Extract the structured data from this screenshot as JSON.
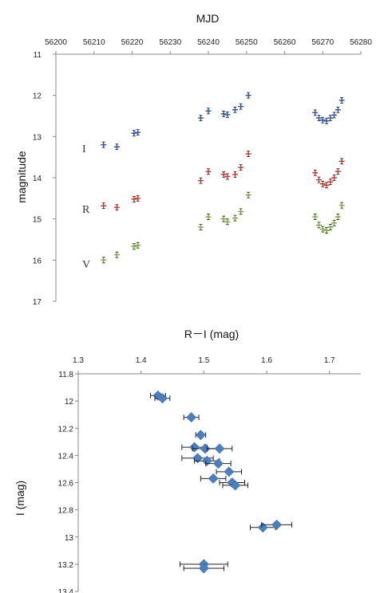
{
  "chart_data": [
    {
      "type": "scatter",
      "xlabel": "MJD",
      "ylabel": "magnitude",
      "xlim": [
        56200,
        56280
      ],
      "ylim": [
        17,
        11
      ],
      "y_inverted": true,
      "x_ticks": [
        "56200",
        "56210",
        "56220",
        "56230",
        "56240",
        "56250",
        "56260",
        "56270",
        "56280"
      ],
      "y_ticks": [
        "11",
        "12",
        "13",
        "14",
        "15",
        "16",
        "17"
      ],
      "x_axis_position": "top",
      "grid": false,
      "band_labels": [
        "I",
        "R",
        "V"
      ],
      "series": [
        {
          "name": "I",
          "color": "#2b52a6",
          "points": [
            [
              56212.5,
              13.2
            ],
            [
              56216,
              13.25
            ],
            [
              56220.5,
              12.92
            ],
            [
              56221.5,
              12.9
            ],
            [
              56238,
              12.55
            ],
            [
              56240,
              12.38
            ],
            [
              56244,
              12.45
            ],
            [
              56245,
              12.47
            ],
            [
              56247,
              12.35
            ],
            [
              56248.5,
              12.27
            ],
            [
              56250.5,
              12.0
            ],
            [
              56268,
              12.42
            ],
            [
              56269,
              12.55
            ],
            [
              56270,
              12.6
            ],
            [
              56271,
              12.62
            ],
            [
              56272,
              12.55
            ],
            [
              56273,
              12.48
            ],
            [
              56274,
              12.35
            ],
            [
              56275,
              12.12
            ]
          ]
        },
        {
          "name": "R",
          "color": "#c0392b",
          "points": [
            [
              56212.5,
              14.68
            ],
            [
              56216,
              14.72
            ],
            [
              56220.5,
              14.52
            ],
            [
              56221.5,
              14.5
            ],
            [
              56238,
              14.07
            ],
            [
              56240,
              13.85
            ],
            [
              56244,
              13.92
            ],
            [
              56245,
              13.97
            ],
            [
              56247,
              13.92
            ],
            [
              56248.5,
              13.75
            ],
            [
              56250.5,
              13.42
            ],
            [
              56268,
              13.88
            ],
            [
              56269,
              14.05
            ],
            [
              56270,
              14.15
            ],
            [
              56271,
              14.18
            ],
            [
              56272,
              14.1
            ],
            [
              56273,
              14.0
            ],
            [
              56274,
              13.85
            ],
            [
              56275,
              13.6
            ]
          ]
        },
        {
          "name": "V",
          "color": "#7aa63a",
          "points": [
            [
              56212.5,
              16.0
            ],
            [
              56216,
              15.87
            ],
            [
              56220.5,
              15.67
            ],
            [
              56221.5,
              15.64
            ],
            [
              56238,
              15.2
            ],
            [
              56240,
              14.95
            ],
            [
              56244,
              15.0
            ],
            [
              56245,
              15.07
            ],
            [
              56247,
              14.98
            ],
            [
              56248.5,
              14.82
            ],
            [
              56250.5,
              14.42
            ],
            [
              56268,
              14.95
            ],
            [
              56269,
              15.15
            ],
            [
              56270,
              15.25
            ],
            [
              56271,
              15.28
            ],
            [
              56272,
              15.2
            ],
            [
              56273,
              15.1
            ],
            [
              56274,
              14.95
            ],
            [
              56275,
              14.67
            ]
          ]
        }
      ]
    },
    {
      "type": "scatter",
      "xlabel": "R－I (mag)",
      "ylabel": "I (mag)",
      "xlim": [
        1.3,
        1.75
      ],
      "ylim": [
        13.4,
        11.8
      ],
      "y_inverted": true,
      "x_ticks": [
        "1.3",
        "1.4",
        "1.5",
        "1.6",
        "1.7"
      ],
      "y_ticks": [
        "11.8",
        "12",
        "12.2",
        "12.4",
        "12.6",
        "12.8",
        "13",
        "13.2",
        "13.4"
      ],
      "x_axis_position": "top",
      "grid": false,
      "color": "#4a7fc1",
      "points": [
        {
          "x": 1.427,
          "y": 11.96,
          "xerr": 0.012
        },
        {
          "x": 1.434,
          "y": 11.98,
          "xerr": 0.012
        },
        {
          "x": 1.48,
          "y": 12.12,
          "xerr": 0.012
        },
        {
          "x": 1.495,
          "y": 12.25,
          "xerr": 0.008
        },
        {
          "x": 1.485,
          "y": 12.34,
          "xerr": 0.02
        },
        {
          "x": 1.502,
          "y": 12.35,
          "xerr": 0.02
        },
        {
          "x": 1.525,
          "y": 12.35,
          "xerr": 0.02
        },
        {
          "x": 1.49,
          "y": 12.42,
          "xerr": 0.025
        },
        {
          "x": 1.505,
          "y": 12.44,
          "xerr": 0.02
        },
        {
          "x": 1.523,
          "y": 12.46,
          "xerr": 0.02
        },
        {
          "x": 1.54,
          "y": 12.52,
          "xerr": 0.02
        },
        {
          "x": 1.515,
          "y": 12.57,
          "xerr": 0.02
        },
        {
          "x": 1.545,
          "y": 12.6,
          "xerr": 0.02
        },
        {
          "x": 1.55,
          "y": 12.62,
          "xerr": 0.02
        },
        {
          "x": 1.594,
          "y": 12.93,
          "xerr": 0.02
        },
        {
          "x": 1.616,
          "y": 12.91,
          "xerr": 0.024
        },
        {
          "x": 1.5,
          "y": 13.2,
          "xerr": 0.038
        },
        {
          "x": 1.5,
          "y": 13.23,
          "xerr": 0.032
        }
      ]
    }
  ]
}
